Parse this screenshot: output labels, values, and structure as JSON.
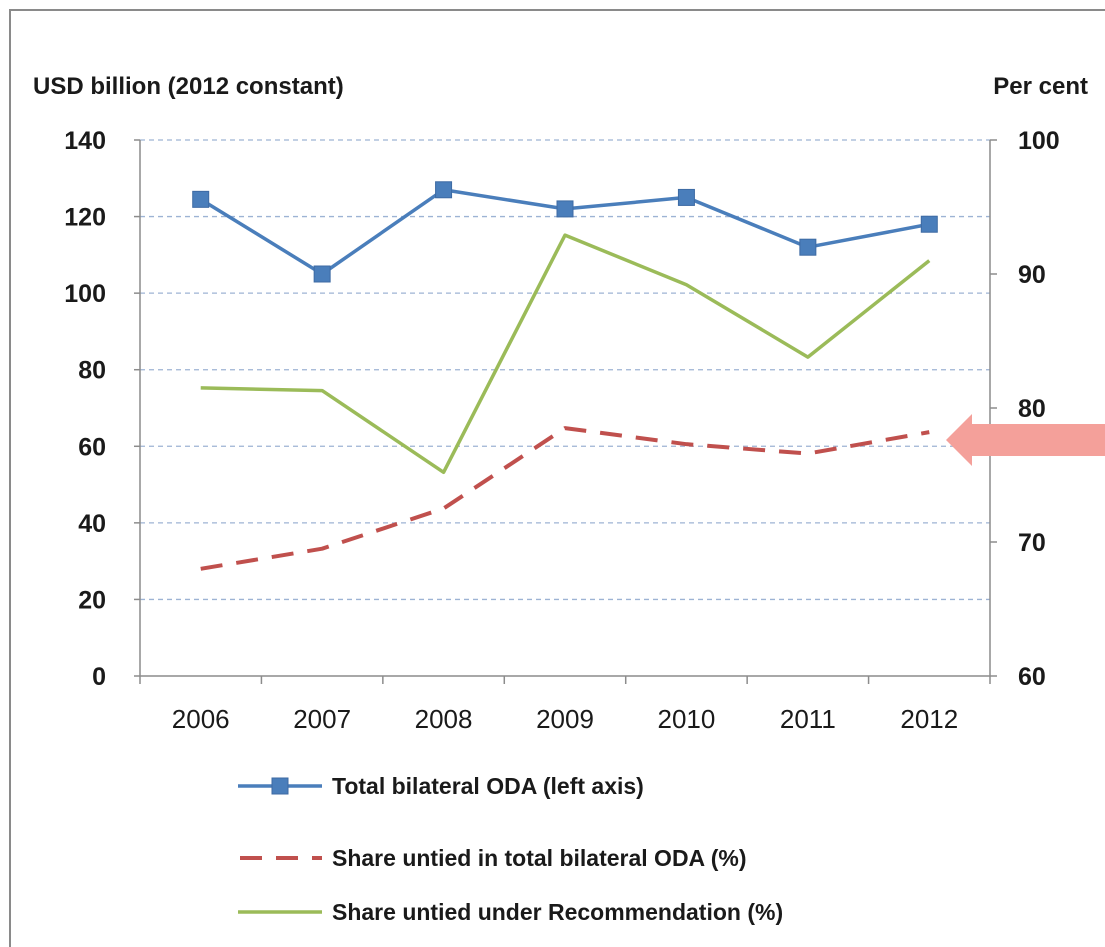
{
  "chart_data": {
    "type": "line",
    "left_axis_title": "USD billion (2012 constant)",
    "right_axis_title": "Per cent",
    "categories": [
      "2006",
      "2007",
      "2008",
      "2009",
      "2010",
      "2011",
      "2012"
    ],
    "left_ylim": [
      0,
      140
    ],
    "left_yticks": [
      "0",
      "20",
      "40",
      "60",
      "80",
      "100",
      "120",
      "140"
    ],
    "right_ylim": [
      60,
      100
    ],
    "right_yticks": [
      "60",
      "70",
      "80",
      "90",
      "100"
    ],
    "grid": "horizontal dashed",
    "legend_position": "bottom",
    "series": [
      {
        "name": "Total bilateral ODA (left axis)",
        "axis": "left",
        "style": "solid-square-markers",
        "color": "#4a7ebb",
        "values": [
          124.5,
          105,
          127,
          122,
          125,
          112,
          118
        ]
      },
      {
        "name": "Share untied in total bilateral ODA (%)",
        "axis": "right",
        "style": "dashed",
        "color": "#c0504d",
        "values": [
          68,
          69.5,
          72.5,
          78.5,
          77.3,
          76.6,
          78.2
        ]
      },
      {
        "name": "Share untied under Recommendation (%)",
        "axis": "right",
        "style": "solid",
        "color": "#9bbb59",
        "values": [
          81.5,
          81.3,
          75.2,
          92.9,
          89.2,
          83.8,
          91
        ]
      }
    ],
    "annotation": {
      "type": "arrow",
      "color": "#f4a09a",
      "points_to": "Share untied in total bilateral ODA (%) at 2012"
    }
  }
}
